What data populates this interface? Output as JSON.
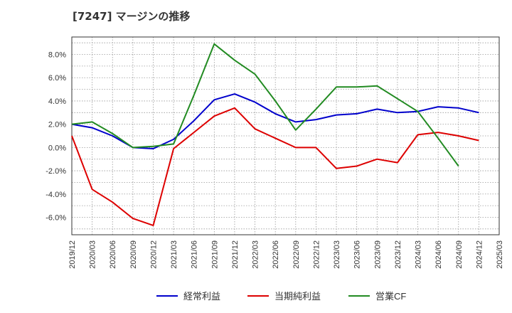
{
  "chart_data": {
    "type": "line",
    "title": "[7247]  マージンの推移",
    "xlabel": "",
    "ylabel": "",
    "ylim": [
      -7.5,
      9.5
    ],
    "yticks": [
      -6,
      -4,
      -2,
      0,
      2,
      4,
      6,
      8
    ],
    "ytick_labels": [
      "-6.0%",
      "-4.0%",
      "-2.0%",
      "0.0%",
      "2.0%",
      "4.0%",
      "6.0%",
      "8.0%"
    ],
    "grid": true,
    "legend_position": "bottom",
    "x": [
      "2019/12",
      "2020/03",
      "2020/06",
      "2020/09",
      "2020/12",
      "2021/03",
      "2021/06",
      "2021/09",
      "2021/12",
      "2022/03",
      "2022/06",
      "2022/09",
      "2022/12",
      "2023/03",
      "2023/06",
      "2023/09",
      "2023/12",
      "2024/03",
      "2024/06",
      "2024/09",
      "2024/12",
      "2025/03"
    ],
    "series": [
      {
        "name": "経常利益",
        "color": "#0000cc",
        "values": [
          2.0,
          1.7,
          1.0,
          0.0,
          -0.1,
          0.7,
          2.3,
          4.1,
          4.6,
          3.9,
          2.9,
          2.2,
          2.4,
          2.8,
          2.9,
          3.3,
          3.0,
          3.1,
          3.5,
          3.4,
          3.0,
          null
        ]
      },
      {
        "name": "当期純利益",
        "color": "#dd0000",
        "values": [
          1.0,
          -3.6,
          -4.7,
          -6.1,
          -6.7,
          -0.1,
          1.3,
          2.7,
          3.4,
          1.6,
          0.8,
          0.0,
          0.0,
          -1.8,
          -1.6,
          -1.0,
          -1.3,
          1.1,
          1.3,
          1.0,
          0.6,
          null
        ]
      },
      {
        "name": "営業CF",
        "color": "#228b22",
        "values": [
          2.0,
          2.2,
          1.2,
          0.0,
          0.1,
          0.3,
          4.5,
          8.9,
          7.5,
          6.3,
          4.0,
          1.5,
          3.3,
          5.2,
          5.2,
          5.3,
          4.2,
          3.1,
          0.8,
          -1.6,
          null,
          null
        ]
      }
    ]
  }
}
